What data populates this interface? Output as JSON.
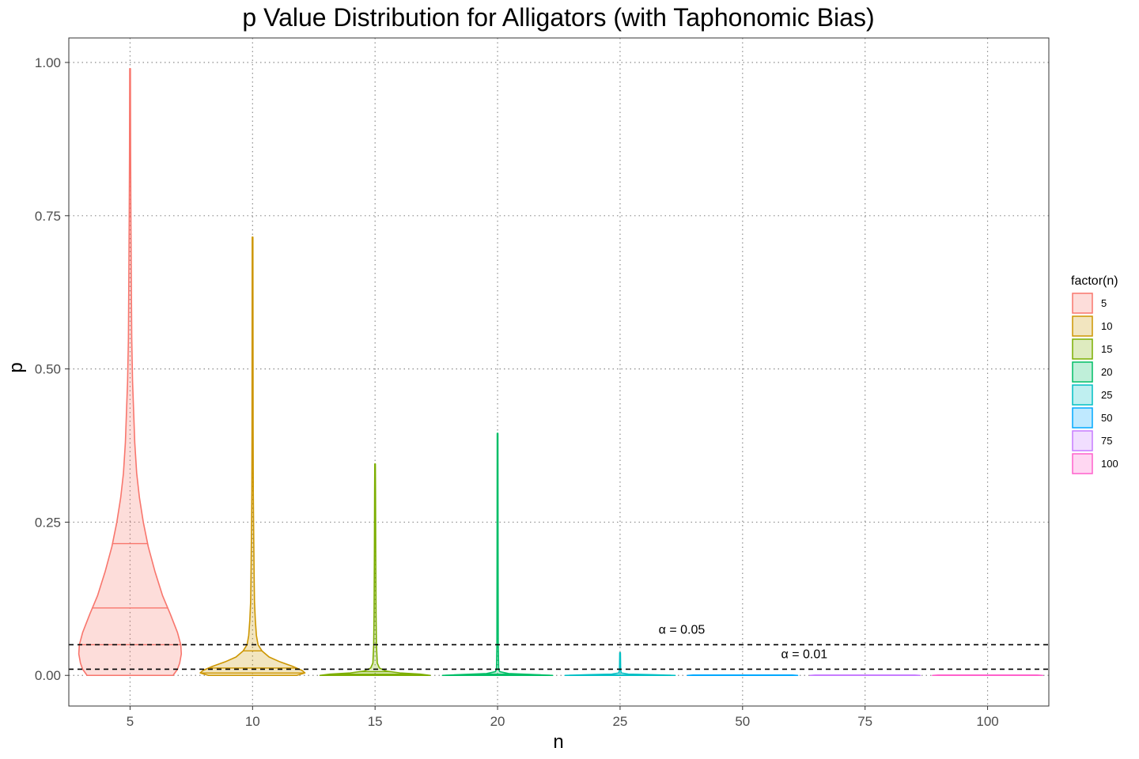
{
  "chart_data": {
    "type": "violin",
    "title": "p Value Distribution for Alligators (with Taphonomic Bias)",
    "xlabel": "n",
    "ylabel": "p",
    "categories": [
      "5",
      "10",
      "15",
      "20",
      "25",
      "50",
      "75",
      "100"
    ],
    "ylim": [
      -0.05,
      1.04
    ],
    "yticks": [
      0.0,
      0.25,
      0.5,
      0.75,
      1.0
    ],
    "ytick_labels": [
      "0.00",
      "0.25",
      "0.50",
      "0.75",
      "1.00"
    ],
    "grid": "major dotted",
    "legend": {
      "title": "factor(n)",
      "placement": "right",
      "entries": [
        "5",
        "10",
        "15",
        "20",
        "25",
        "50",
        "75",
        "100"
      ]
    },
    "colors": [
      "#F8766D",
      "#CD9600",
      "#7CAE00",
      "#00BE67",
      "#00BFC4",
      "#00A9FF",
      "#C77CFF",
      "#FF61CC"
    ],
    "series": [
      {
        "category": "5",
        "max": 0.99,
        "quantiles": [
          0.05,
          0.11,
          0.215
        ],
        "profile": [
          [
            0.0,
            0.78
          ],
          [
            0.01,
            0.86
          ],
          [
            0.02,
            0.9
          ],
          [
            0.035,
            0.93
          ],
          [
            0.05,
            0.92
          ],
          [
            0.07,
            0.86
          ],
          [
            0.1,
            0.73
          ],
          [
            0.13,
            0.59
          ],
          [
            0.17,
            0.45
          ],
          [
            0.21,
            0.33
          ],
          [
            0.25,
            0.24
          ],
          [
            0.29,
            0.17
          ],
          [
            0.33,
            0.12
          ],
          [
            0.38,
            0.085
          ],
          [
            0.43,
            0.065
          ],
          [
            0.48,
            0.045
          ],
          [
            0.55,
            0.03
          ],
          [
            0.65,
            0.022
          ],
          [
            0.75,
            0.015
          ],
          [
            0.85,
            0.01
          ],
          [
            0.99,
            0.006
          ]
        ]
      },
      {
        "category": "10",
        "max": 0.715,
        "quantiles": [
          0.004,
          0.012,
          0.04
        ],
        "profile": [
          [
            0.0,
            0.8
          ],
          [
            0.004,
            0.95
          ],
          [
            0.008,
            0.9
          ],
          [
            0.015,
            0.72
          ],
          [
            0.022,
            0.5
          ],
          [
            0.03,
            0.3
          ],
          [
            0.04,
            0.17
          ],
          [
            0.05,
            0.1
          ],
          [
            0.065,
            0.07
          ],
          [
            0.09,
            0.05
          ],
          [
            0.12,
            0.035
          ],
          [
            0.15,
            0.03
          ],
          [
            0.2,
            0.024
          ],
          [
            0.25,
            0.018
          ],
          [
            0.3,
            0.013
          ],
          [
            0.4,
            0.01
          ],
          [
            0.55,
            0.008
          ],
          [
            0.715,
            0.006
          ]
        ]
      },
      {
        "category": "15",
        "max": 0.345,
        "quantiles": [
          0.0005,
          0.002,
          0.006
        ],
        "profile": [
          [
            0.0,
            1.0
          ],
          [
            0.002,
            0.82
          ],
          [
            0.004,
            0.45
          ],
          [
            0.007,
            0.2
          ],
          [
            0.012,
            0.08
          ],
          [
            0.02,
            0.04
          ],
          [
            0.03,
            0.035
          ],
          [
            0.05,
            0.025
          ],
          [
            0.1,
            0.018
          ],
          [
            0.2,
            0.012
          ],
          [
            0.3,
            0.008
          ],
          [
            0.345,
            0.005
          ]
        ]
      },
      {
        "category": "20",
        "max": 0.395,
        "quantiles": [
          0.0002,
          0.0008,
          0.002
        ],
        "profile": [
          [
            0.0,
            1.0
          ],
          [
            0.0015,
            0.6
          ],
          [
            0.003,
            0.2
          ],
          [
            0.006,
            0.04
          ],
          [
            0.01,
            0.02
          ],
          [
            0.05,
            0.012
          ],
          [
            0.2,
            0.009
          ],
          [
            0.395,
            0.006
          ]
        ]
      },
      {
        "category": "25",
        "max": 0.037,
        "quantiles": [
          0.0,
          0.0002,
          0.0005
        ],
        "profile": [
          [
            0.0,
            1.0
          ],
          [
            0.001,
            0.6
          ],
          [
            0.002,
            0.15
          ],
          [
            0.004,
            0.02
          ],
          [
            0.01,
            0.01
          ],
          [
            0.037,
            0.006
          ]
        ]
      },
      {
        "category": "50",
        "max": 0.0005,
        "quantiles": [
          0.0,
          0.0,
          0.0001
        ],
        "profile": [
          [
            0.0,
            1.0
          ],
          [
            0.0005,
            0.9
          ]
        ]
      },
      {
        "category": "75",
        "max": 0.0005,
        "quantiles": [
          0.0,
          0.0,
          0.0
        ],
        "profile": [
          [
            0.0,
            1.0
          ],
          [
            0.0005,
            0.9
          ]
        ]
      },
      {
        "category": "100",
        "max": 0.0005,
        "quantiles": [
          0.0,
          0.0,
          0.0
        ],
        "profile": [
          [
            0.0,
            1.0
          ],
          [
            0.0005,
            0.9
          ]
        ]
      }
    ],
    "reference_lines": [
      {
        "y": 0.05,
        "style": "dashed",
        "label": "α = 0.05",
        "label_x_category": "25"
      },
      {
        "y": 0.01,
        "style": "dashed",
        "label": "α = 0.01",
        "label_x_category": "50"
      }
    ]
  }
}
